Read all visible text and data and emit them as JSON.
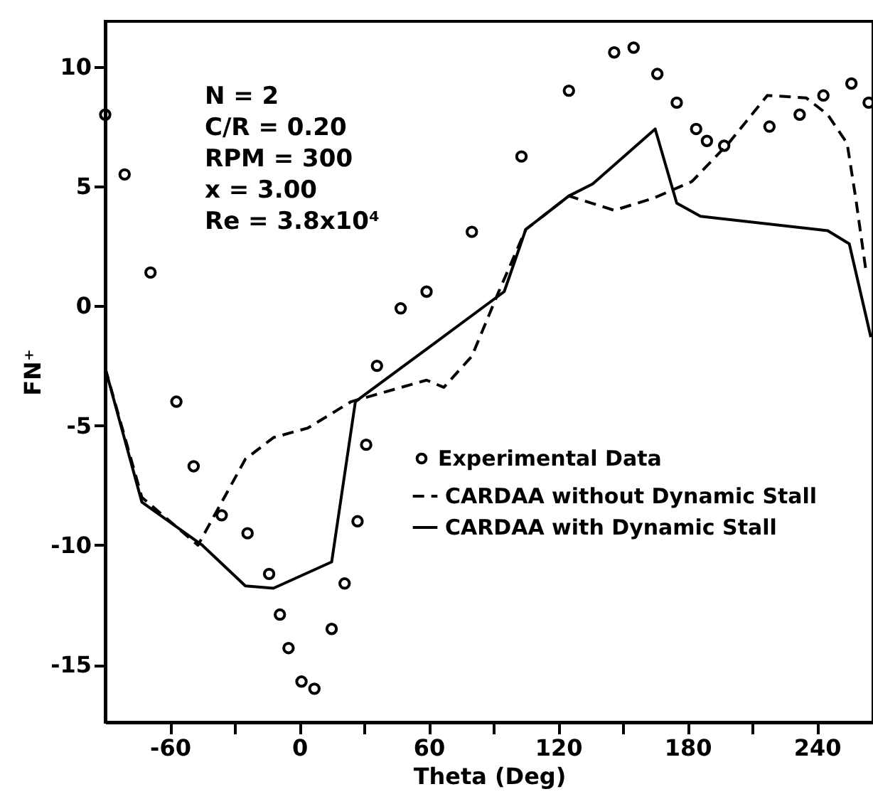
{
  "chart_data": {
    "type": "line",
    "xlabel": "Theta (Deg)",
    "ylabel": "FN⁺",
    "xlim": [
      -90,
      266
    ],
    "ylim": [
      -17.4,
      11.9
    ],
    "xticks": [
      -60,
      {
        "value": -30,
        "label": null
      },
      0,
      {
        "value": 30,
        "label": null
      },
      60,
      {
        "value": 90,
        "label": null
      },
      120,
      {
        "value": 150,
        "label": null
      },
      180,
      {
        "value": 210,
        "label": null
      },
      240
    ],
    "yticks": [
      -15,
      -10,
      -5,
      0,
      5,
      10
    ],
    "grid": false,
    "legend": "bottom right",
    "annotations": [
      "N = 2",
      "C/R = 0.20",
      "RPM = 300",
      "x = 3.00",
      "Re = 3.8x10⁴"
    ],
    "series": [
      {
        "name": "Experimental Data",
        "type": "scatter",
        "marker": "circle",
        "color": "#000000",
        "x": [
          -90,
          -81,
          -69,
          -57,
          -49,
          -36,
          -24,
          -14,
          -9,
          -5,
          1,
          7,
          15,
          21,
          27,
          31,
          36,
          47,
          59,
          80,
          103,
          125,
          146,
          155,
          166,
          175,
          184,
          189,
          197,
          218,
          232,
          243,
          256,
          264
        ],
        "values": [
          8.0,
          5.5,
          1.4,
          -4.0,
          -6.7,
          -8.75,
          -9.5,
          -11.2,
          -12.9,
          -14.3,
          -15.7,
          -16.0,
          -13.5,
          -11.6,
          -9.0,
          -5.8,
          -2.5,
          -0.1,
          0.6,
          3.1,
          6.25,
          9.0,
          10.6,
          10.8,
          9.7,
          8.5,
          7.4,
          6.9,
          6.7,
          7.5,
          8.0,
          8.8,
          9.3,
          8.5
        ]
      },
      {
        "name": "CARDAA without Dynamic Stall",
        "line_style": "dashed",
        "color": "#000000",
        "x": [
          -90,
          -73,
          -47,
          -25,
          -12,
          4,
          24,
          59,
          67,
          80,
          92,
          105,
          125,
          146,
          164,
          182,
          199,
          217,
          235,
          245,
          254,
          258,
          263
        ],
        "values": [
          -2.6,
          -8.0,
          -10.0,
          -6.4,
          -5.5,
          -5.1,
          -4.0,
          -3.1,
          -3.4,
          -2.1,
          0.5,
          3.2,
          4.6,
          4.0,
          4.5,
          5.2,
          6.8,
          8.8,
          8.7,
          8.0,
          6.8,
          4.5,
          1.3
        ]
      },
      {
        "name": "CARDAA with Dynamic Stall",
        "line_style": "solid",
        "color": "#000000",
        "x": [
          -90,
          -73,
          -45,
          -25,
          -12,
          15,
          26,
          59,
          95,
          105,
          125,
          136,
          165,
          175,
          186,
          245,
          255,
          265
        ],
        "values": [
          -2.6,
          -8.2,
          -10.0,
          -11.7,
          -11.8,
          -10.7,
          -4.0,
          -1.8,
          0.6,
          3.2,
          4.6,
          5.1,
          7.4,
          4.3,
          3.75,
          3.15,
          2.6,
          -1.3
        ]
      }
    ]
  }
}
